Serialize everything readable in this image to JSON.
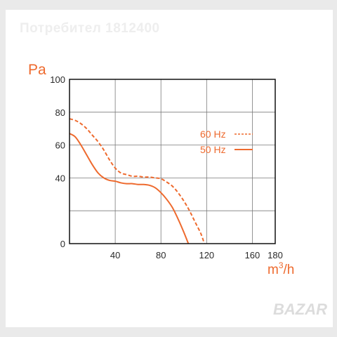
{
  "watermark_text": "Потребител 1812400",
  "site_logo": "BAZAR",
  "colors": {
    "curve": "#ee6a2e",
    "grid": "#7a7a7a",
    "frame": "#111111",
    "tick_label": "#2a2a2a"
  },
  "chart_data": {
    "type": "line",
    "title": "",
    "ylabel": "Pa",
    "xlabel": "m³/h",
    "xlabel_base": "m",
    "xlabel_sup": "3",
    "xlabel_tail": "/h",
    "xlim": [
      0,
      180
    ],
    "ylim": [
      0,
      100
    ],
    "xticks": [
      40,
      80,
      120,
      160,
      180
    ],
    "yticks": [
      0,
      40,
      60,
      80,
      100
    ],
    "grid": true,
    "legend_position": "right",
    "series": [
      {
        "name": "60 Hz",
        "style": "dashed",
        "x": [
          0,
          5,
          10,
          15,
          20,
          25,
          30,
          35,
          40,
          45,
          50,
          55,
          60,
          65,
          70,
          75,
          80,
          85,
          90,
          95,
          100,
          105,
          110,
          115,
          118
        ],
        "y": [
          76,
          75,
          73,
          70,
          66,
          62,
          57,
          51,
          46,
          43,
          42,
          41,
          41,
          40.5,
          40.5,
          40,
          39.5,
          37.5,
          35,
          31,
          26,
          20,
          13,
          6,
          0
        ]
      },
      {
        "name": "50 Hz",
        "style": "solid",
        "x": [
          0,
          5,
          10,
          15,
          20,
          25,
          30,
          35,
          40,
          45,
          50,
          55,
          60,
          65,
          70,
          75,
          80,
          85,
          90,
          95,
          100,
          104
        ],
        "y": [
          67,
          65,
          60,
          54,
          48,
          43,
          40,
          38.5,
          38,
          37,
          36.5,
          36.5,
          36,
          36,
          35.5,
          34,
          31,
          27,
          22,
          15,
          7,
          0
        ]
      }
    ]
  }
}
